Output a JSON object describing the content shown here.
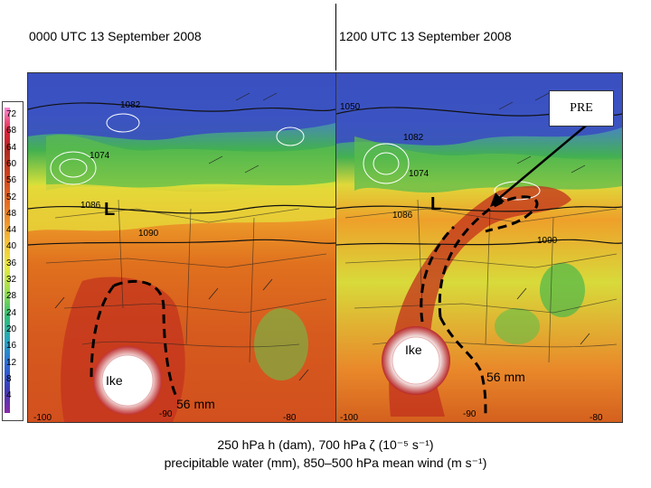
{
  "panels": {
    "left_title": "0000 UTC 13 September 2008",
    "right_title": "1200 UTC 13 September 2008"
  },
  "colorbar": {
    "labels": [
      "72",
      "68",
      "64",
      "60",
      "56",
      "52",
      "48",
      "44",
      "40",
      "36",
      "32",
      "28",
      "24",
      "20",
      "16",
      "12",
      "8",
      "4"
    ]
  },
  "left_map": {
    "contours": [
      "1082",
      "1074",
      "1086",
      "1090"
    ],
    "longitudes": [
      "-100",
      "-90",
      "-80"
    ],
    "storm_label": "Ike",
    "pw_label": "56 mm",
    "low_label": "L"
  },
  "right_map": {
    "contours": [
      "1050",
      "1082",
      "1074",
      "1086",
      "1090"
    ],
    "longitudes": [
      "-100",
      "-90",
      "-80"
    ],
    "storm_label": "Ike",
    "pw_label": "56 mm",
    "low_label": "L"
  },
  "annotation": {
    "pre": "PRE"
  },
  "caption": {
    "line1": "250 hPa h (dam), 700 hPa ζ (10⁻⁵ s⁻¹)",
    "line2": "precipitable water (mm), 850–500 hPa mean wind (m s⁻¹)"
  },
  "colors": {
    "blue": "#3b55c8",
    "green": "#42b050",
    "yellow": "#e9e23a",
    "orange": "#e8801f",
    "red": "#c8321c",
    "darkred": "#a01a14"
  }
}
